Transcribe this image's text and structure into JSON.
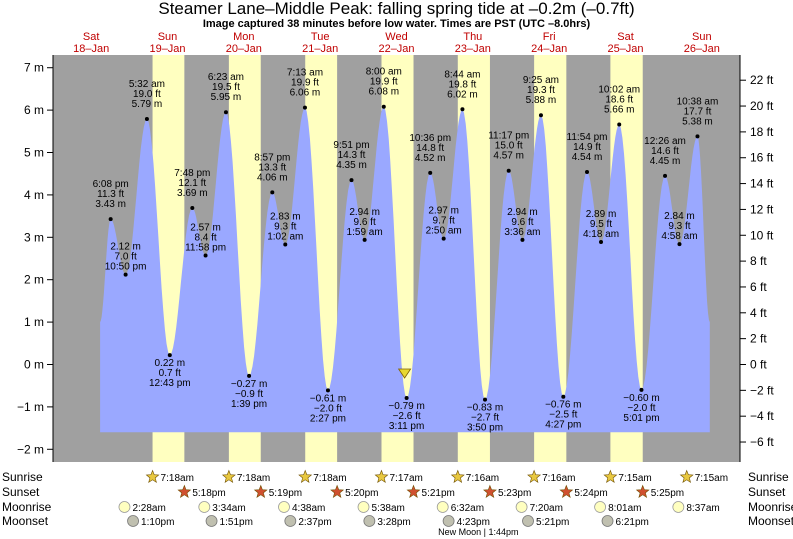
{
  "header": {
    "title": "Steamer Lane–Middle Peak: falling  spring tide at –0.2m (–0.7ft)",
    "subtitle": "Image captured 38 minutes before low water. Times are PST (UTC –8.0hrs)"
  },
  "colors": {
    "night": "#a0a0a0",
    "day": "#ffffc0",
    "tide": "#9aa8ff",
    "day_label": "#c00000",
    "current_marker": "#e8d830",
    "sun_star": "#e8c840",
    "sunset_star": "#d05030",
    "moonrise": "#ffffc0",
    "moonset": "#c0c0b0"
  },
  "chart_data": {
    "type": "area",
    "title": "Steamer Lane–Middle Peak: falling  spring tide at –0.2m (–0.7ft)",
    "ylabel_left_unit": "m",
    "ylabel_right_unit": "ft",
    "ylim_m": [
      -2.3,
      7.3
    ],
    "y_ticks_m": [
      -2,
      -1,
      0,
      1,
      2,
      3,
      4,
      5,
      6,
      7
    ],
    "y_ticks_m_labels": [
      "−2 m",
      "−1 m",
      "0 m",
      "1 m",
      "2 m",
      "3 m",
      "4 m",
      "5 m",
      "6 m",
      "7 m"
    ],
    "y_ticks_ft": [
      -6,
      -4,
      -2,
      0,
      2,
      4,
      6,
      8,
      10,
      12,
      14,
      16,
      18,
      20,
      22
    ],
    "y_ticks_ft_labels": [
      "−6 ft",
      "−4 ft",
      "−2 ft",
      "0 ft",
      "2 ft",
      "4 ft",
      "6 ft",
      "8 ft",
      "10 ft",
      "12 ft",
      "14 ft",
      "16 ft",
      "18 ft",
      "20 ft",
      "22 ft"
    ],
    "x_start": "2025-01-18 00:00",
    "x_end": "2025-01-26 24:00",
    "days": [
      {
        "dow": "Sat",
        "date": "18–Jan"
      },
      {
        "dow": "Sun",
        "date": "19–Jan"
      },
      {
        "dow": "Mon",
        "date": "20–Jan"
      },
      {
        "dow": "Tue",
        "date": "21–Jan"
      },
      {
        "dow": "Wed",
        "date": "22–Jan"
      },
      {
        "dow": "Thu",
        "date": "23–Jan"
      },
      {
        "dow": "Fri",
        "date": "24–Jan"
      },
      {
        "dow": "Sat",
        "date": "25–Jan"
      },
      {
        "dow": "Sun",
        "date": "26–Jan"
      }
    ],
    "daylight": [
      {
        "day": 1,
        "rise": 7.3,
        "set": 17.3
      },
      {
        "day": 2,
        "rise": 7.3,
        "set": 17.32
      },
      {
        "day": 3,
        "rise": 7.3,
        "set": 17.33
      },
      {
        "day": 4,
        "rise": 7.28,
        "set": 17.35
      },
      {
        "day": 5,
        "rise": 7.27,
        "set": 17.38
      },
      {
        "day": 6,
        "rise": 7.27,
        "set": 17.4
      },
      {
        "day": 7,
        "rise": 7.25,
        "set": 17.42
      }
    ],
    "tides": [
      {
        "day": 0,
        "hour": 18.13,
        "m": 3.43,
        "time": "6:08 pm",
        "ft": "11.3 ft",
        "m_label": "3.43 m",
        "type": "high"
      },
      {
        "day": 0,
        "hour": 22.83,
        "m": 2.12,
        "time": "10:50 pm",
        "ft": "7.0 ft",
        "m_label": "2.12 m",
        "type": "low"
      },
      {
        "day": 1,
        "hour": 5.53,
        "m": 5.79,
        "time": "5:32 am",
        "ft": "19.0 ft",
        "m_label": "5.79 m",
        "type": "high"
      },
      {
        "day": 1,
        "hour": 12.72,
        "m": 0.22,
        "time": "12:43 pm",
        "ft": "0.7 ft",
        "m_label": "0.22 m",
        "type": "low"
      },
      {
        "day": 1,
        "hour": 19.8,
        "m": 3.69,
        "time": "7:48 pm",
        "ft": "12.1 ft",
        "m_label": "3.69 m",
        "type": "high"
      },
      {
        "day": 1,
        "hour": 23.97,
        "m": 2.57,
        "time": "11:58 pm",
        "ft": "8.4 ft",
        "m_label": "2.57 m",
        "type": "low"
      },
      {
        "day": 2,
        "hour": 6.38,
        "m": 5.95,
        "time": "6:23 am",
        "ft": "19.5 ft",
        "m_label": "5.95 m",
        "type": "high"
      },
      {
        "day": 2,
        "hour": 13.65,
        "m": -0.27,
        "time": "1:39 pm",
        "ft": "−0.9 ft",
        "m_label": "−0.27 m",
        "type": "low"
      },
      {
        "day": 2,
        "hour": 20.95,
        "m": 4.06,
        "time": "8:57 pm",
        "ft": "13.3 ft",
        "m_label": "4.06 m",
        "type": "high"
      },
      {
        "day": 3,
        "hour": 1.03,
        "m": 2.83,
        "time": "1:02 am",
        "ft": "9.3 ft",
        "m_label": "2.83 m",
        "type": "low"
      },
      {
        "day": 3,
        "hour": 7.22,
        "m": 6.06,
        "time": "7:13 am",
        "ft": "19.9 ft",
        "m_label": "6.06 m",
        "type": "high"
      },
      {
        "day": 3,
        "hour": 14.45,
        "m": -0.61,
        "time": "2:27 pm",
        "ft": "−2.0 ft",
        "m_label": "−0.61 m",
        "type": "low"
      },
      {
        "day": 3,
        "hour": 21.85,
        "m": 4.35,
        "time": "9:51 pm",
        "ft": "14.3 ft",
        "m_label": "4.35 m",
        "type": "high"
      },
      {
        "day": 4,
        "hour": 1.98,
        "m": 2.94,
        "time": "1:59 am",
        "ft": "9.6 ft",
        "m_label": "2.94 m",
        "type": "low"
      },
      {
        "day": 4,
        "hour": 8.0,
        "m": 6.08,
        "time": "8:00 am",
        "ft": "19.9 ft",
        "m_label": "6.08 m",
        "type": "high"
      },
      {
        "day": 4,
        "hour": 15.18,
        "m": -0.79,
        "time": "3:11 pm",
        "ft": "−2.6 ft",
        "m_label": "−0.79 m",
        "type": "low"
      },
      {
        "day": 4,
        "hour": 22.6,
        "m": 4.52,
        "time": "10:36 pm",
        "ft": "14.8 ft",
        "m_label": "4.52 m",
        "type": "high"
      },
      {
        "day": 5,
        "hour": 2.83,
        "m": 2.97,
        "time": "2:50 am",
        "ft": "9.7 ft",
        "m_label": "2.97 m",
        "type": "low"
      },
      {
        "day": 5,
        "hour": 8.73,
        "m": 6.02,
        "time": "8:44 am",
        "ft": "19.8 ft",
        "m_label": "6.02 m",
        "type": "high"
      },
      {
        "day": 5,
        "hour": 15.83,
        "m": -0.83,
        "time": "3:50 pm",
        "ft": "−2.7 ft",
        "m_label": "−0.83 m",
        "type": "low"
      },
      {
        "day": 5,
        "hour": 23.28,
        "m": 4.57,
        "time": "11:17 pm",
        "ft": "15.0 ft",
        "m_label": "4.57 m",
        "type": "high"
      },
      {
        "day": 6,
        "hour": 3.6,
        "m": 2.94,
        "time": "3:36 am",
        "ft": "9.6 ft",
        "m_label": "2.94 m",
        "type": "low"
      },
      {
        "day": 6,
        "hour": 9.42,
        "m": 5.88,
        "time": "9:25 am",
        "ft": "19.3 ft",
        "m_label": "5.88 m",
        "type": "high"
      },
      {
        "day": 6,
        "hour": 16.45,
        "m": -0.76,
        "time": "4:27 pm",
        "ft": "−2.5 ft",
        "m_label": "−0.76 m",
        "type": "low"
      },
      {
        "day": 6,
        "hour": 23.9,
        "m": 4.54,
        "time": "11:54 pm",
        "ft": "14.9 ft",
        "m_label": "4.54 m",
        "type": "high"
      },
      {
        "day": 7,
        "hour": 4.3,
        "m": 2.89,
        "time": "4:18 am",
        "ft": "9.5 ft",
        "m_label": "2.89 m",
        "type": "low"
      },
      {
        "day": 7,
        "hour": 10.03,
        "m": 5.66,
        "time": "10:02 am",
        "ft": "18.6 ft",
        "m_label": "5.66 m",
        "type": "high"
      },
      {
        "day": 7,
        "hour": 17.02,
        "m": -0.6,
        "time": "5:01 pm",
        "ft": "−2.0 ft",
        "m_label": "−0.60 m",
        "type": "low"
      },
      {
        "day": 8,
        "hour": 0.43,
        "m": 4.45,
        "time": "12:26 am",
        "ft": "14.6 ft",
        "m_label": "4.45 m",
        "type": "high"
      },
      {
        "day": 8,
        "hour": 4.97,
        "m": 2.84,
        "time": "4:58 am",
        "ft": "9.3 ft",
        "m_label": "2.84 m",
        "type": "low"
      },
      {
        "day": 8,
        "hour": 10.63,
        "m": 5.38,
        "time": "10:38 am",
        "ft": "17.7 ft",
        "m_label": "5.38 m",
        "type": "high"
      }
    ],
    "current": {
      "day": 4,
      "hour": 14.55,
      "m": -0.2
    }
  },
  "sun_moon": {
    "labels_left": [
      "Sunrise",
      "Sunset",
      "Moonrise",
      "Moonset"
    ],
    "labels_right": [
      "Sunrise",
      "Sunset",
      "Moonrise",
      "Moonset"
    ],
    "sunrise": [
      {
        "day": 1,
        "hour": 7.3,
        "text": "7:18am"
      },
      {
        "day": 2,
        "hour": 7.3,
        "text": "7:18am"
      },
      {
        "day": 3,
        "hour": 7.3,
        "text": "7:18am"
      },
      {
        "day": 4,
        "hour": 7.28,
        "text": "7:17am"
      },
      {
        "day": 5,
        "hour": 7.27,
        "text": "7:16am"
      },
      {
        "day": 6,
        "hour": 7.27,
        "text": "7:16am"
      },
      {
        "day": 7,
        "hour": 7.25,
        "text": "7:15am"
      },
      {
        "day": 8,
        "hour": 7.25,
        "text": "7:15am"
      }
    ],
    "sunset": [
      {
        "day": 1,
        "hour": 17.3,
        "text": "5:18pm"
      },
      {
        "day": 2,
        "hour": 17.32,
        "text": "5:19pm"
      },
      {
        "day": 3,
        "hour": 17.33,
        "text": "5:20pm"
      },
      {
        "day": 4,
        "hour": 17.35,
        "text": "5:21pm"
      },
      {
        "day": 5,
        "hour": 17.38,
        "text": "5:23pm"
      },
      {
        "day": 6,
        "hour": 17.4,
        "text": "5:24pm"
      },
      {
        "day": 7,
        "hour": 17.42,
        "text": "5:25pm"
      }
    ],
    "moonrise": [
      {
        "day": 0,
        "hour": 22.47,
        "text": "2:28am"
      },
      {
        "day": 1,
        "hour": 23.57,
        "text": "3:34am"
      },
      {
        "day": 3,
        "hour": 0.63,
        "text": "4:38am"
      },
      {
        "day": 4,
        "hour": 1.63,
        "text": "5:38am"
      },
      {
        "day": 5,
        "hour": 2.53,
        "text": "6:32am"
      },
      {
        "day": 6,
        "hour": 3.33,
        "text": "7:20am"
      },
      {
        "day": 7,
        "hour": 4.02,
        "text": "8:01am"
      },
      {
        "day": 8,
        "hour": 4.62,
        "text": "8:37am"
      }
    ],
    "moonset": [
      {
        "day": 1,
        "hour": 1.17,
        "text": "1:10pm"
      },
      {
        "day": 2,
        "hour": 1.85,
        "text": "1:51pm"
      },
      {
        "day": 3,
        "hour": 2.62,
        "text": "2:37pm"
      },
      {
        "day": 4,
        "hour": 3.47,
        "text": "3:28pm"
      },
      {
        "day": 5,
        "hour": 4.38,
        "text": "4:23pm"
      },
      {
        "day": 6,
        "hour": 5.35,
        "text": "5:21pm"
      },
      {
        "day": 7,
        "hour": 6.35,
        "text": "6:21pm"
      }
    ],
    "moon_phase": {
      "day": 5,
      "hour": 13.73,
      "text": "New Moon | 1:44pm"
    }
  }
}
